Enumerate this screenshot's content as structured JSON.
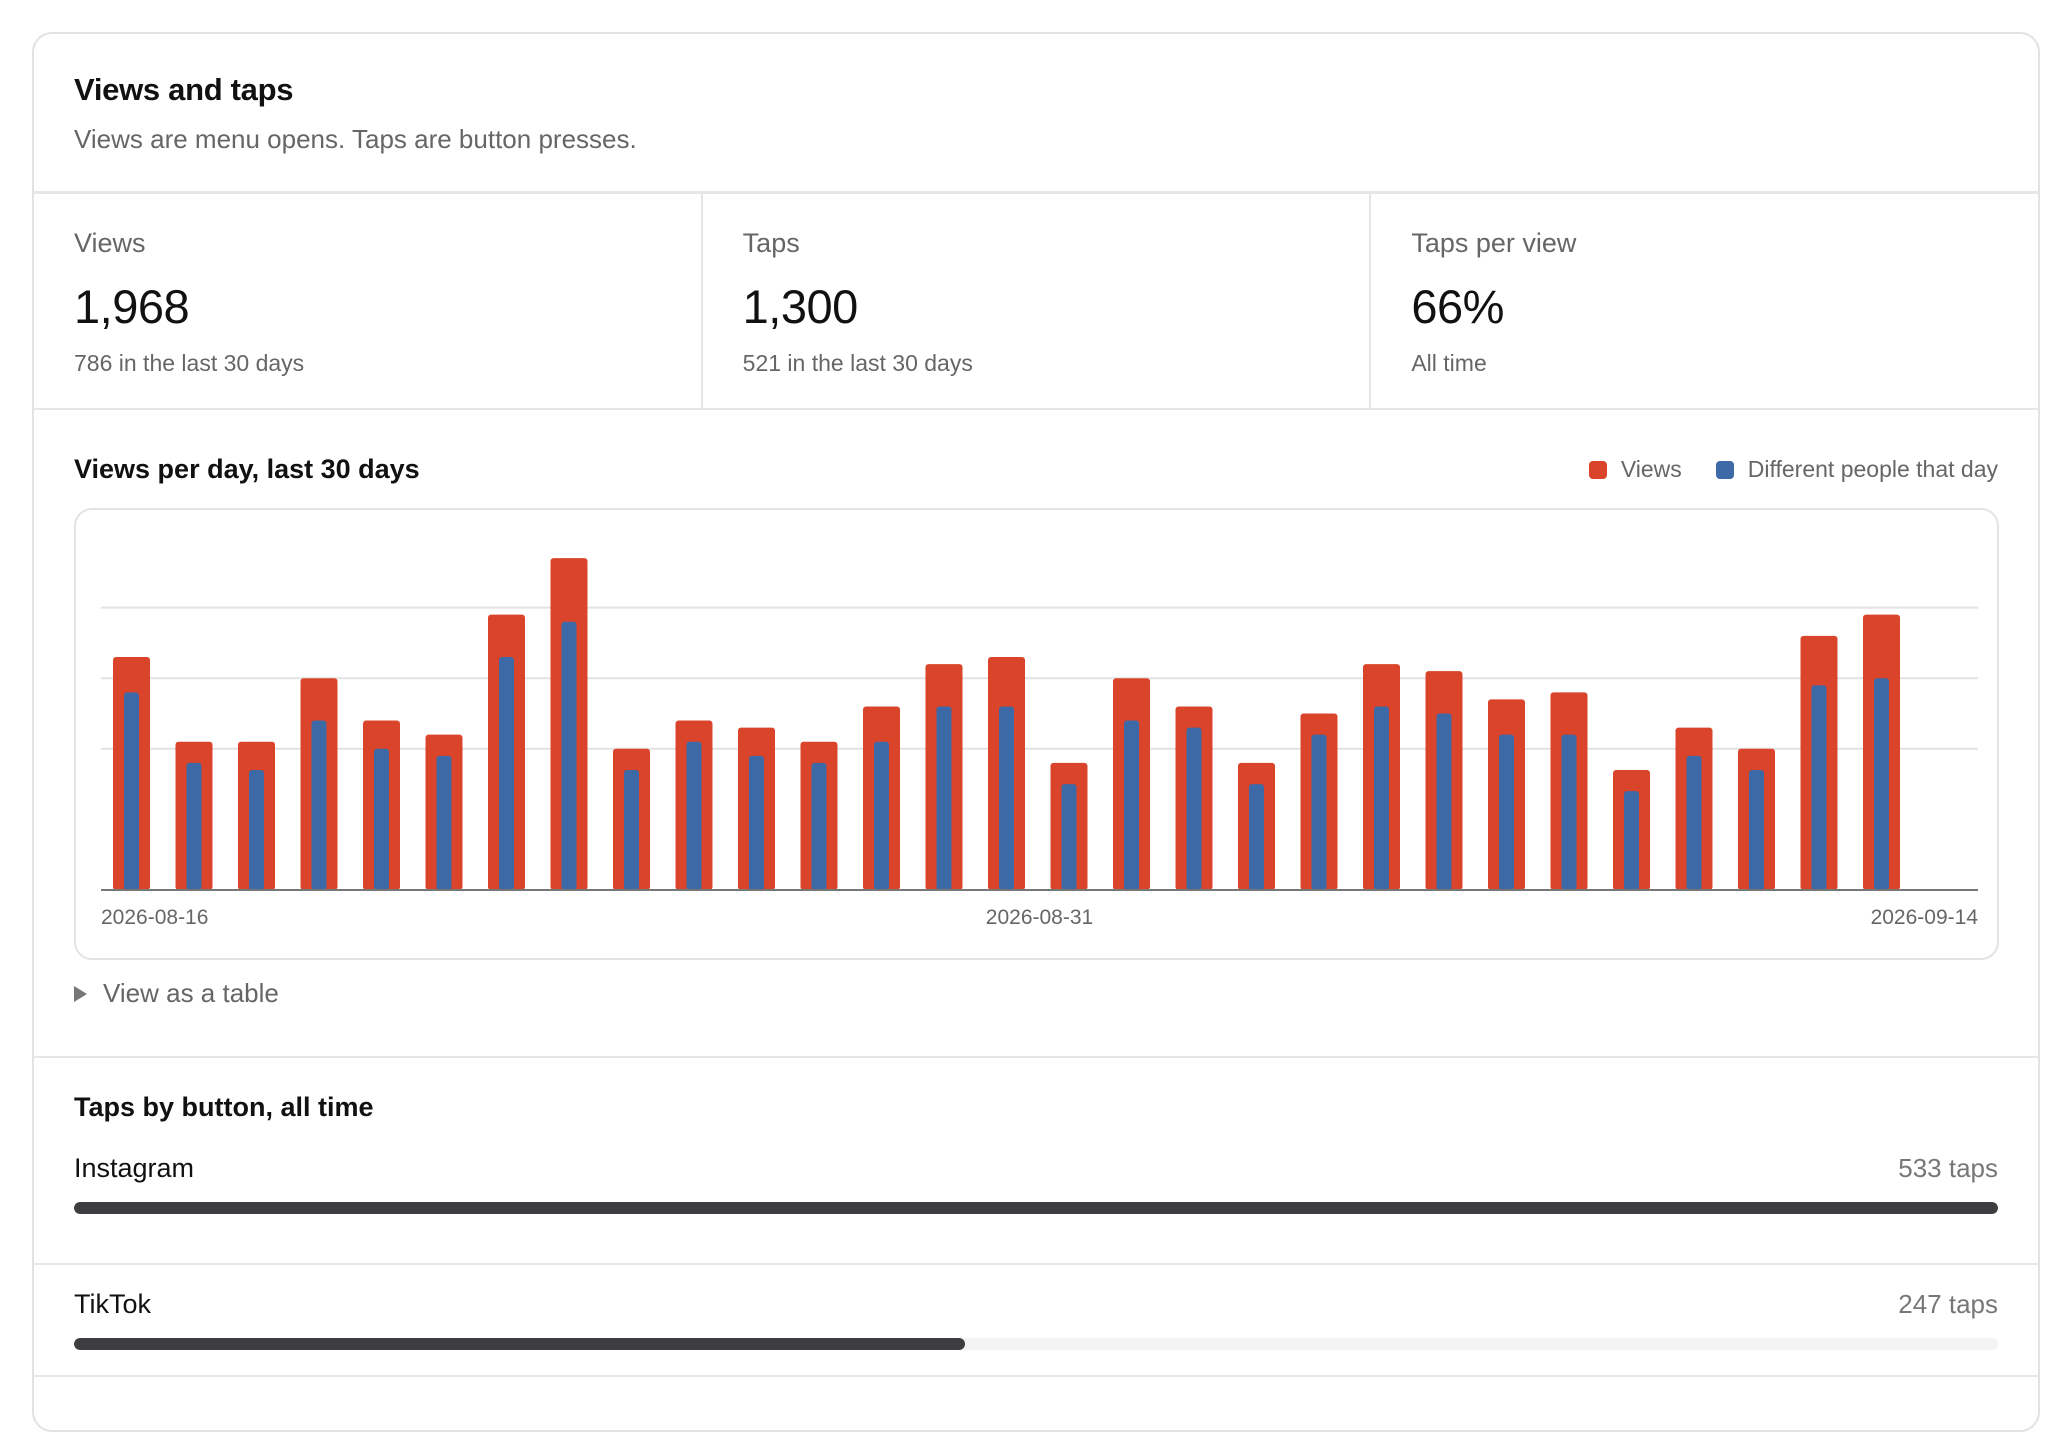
{
  "header": {
    "title": "Views and taps",
    "subtitle": "Views are menu opens. Taps are button presses."
  },
  "stats": [
    {
      "label": "Views",
      "value": "1,968",
      "sub": "786 in the last 30 days"
    },
    {
      "label": "Taps",
      "value": "1,300",
      "sub": "521 in the last 30 days"
    },
    {
      "label": "Taps per view",
      "value": "66%",
      "sub": "All time"
    }
  ],
  "chart": {
    "title": "Views per day, last 30 days",
    "legend": [
      {
        "label": "Views",
        "color": "#d9442a"
      },
      {
        "label": "Different people that day",
        "color": "#3d6aa6"
      }
    ],
    "details_label": "View as a table"
  },
  "chart_data": {
    "type": "bar",
    "x": [
      "2026-08-16",
      "2026-08-17",
      "2026-08-18",
      "2026-08-19",
      "2026-08-20",
      "2026-08-21",
      "2026-08-22",
      "2026-08-23",
      "2026-08-24",
      "2026-08-25",
      "2026-08-26",
      "2026-08-27",
      "2026-08-28",
      "2026-08-29",
      "2026-08-30",
      "2026-08-31",
      "2026-09-01",
      "2026-09-02",
      "2026-09-03",
      "2026-09-04",
      "2026-09-05",
      "2026-09-06",
      "2026-09-07",
      "2026-09-08",
      "2026-09-09",
      "2026-09-10",
      "2026-09-11",
      "2026-09-12",
      "2026-09-13",
      "2026-09-14"
    ],
    "tick_labels": [
      "2026-08-16",
      "2026-08-31",
      "2026-09-14"
    ],
    "series": [
      {
        "name": "Views",
        "color": "#d9442a",
        "values": [
          33,
          21,
          21,
          30,
          24,
          22,
          39,
          47,
          20,
          24,
          23,
          21,
          26,
          32,
          33,
          18,
          30,
          26,
          18,
          25,
          32,
          31,
          27,
          28,
          17,
          23,
          20,
          36,
          39,
          0
        ]
      },
      {
        "name": "Different people that day",
        "color": "#3d6aa6",
        "values": [
          28,
          18,
          17,
          24,
          20,
          19,
          33,
          38,
          17,
          21,
          19,
          18,
          21,
          26,
          26,
          15,
          24,
          23,
          15,
          22,
          26,
          25,
          22,
          22,
          14,
          19,
          17,
          29,
          30,
          0
        ]
      }
    ],
    "ylim": [
      0,
      50
    ],
    "grid": true
  },
  "taps_by_button": {
    "title": "Taps by button, all time",
    "items": [
      {
        "name": "Instagram",
        "count_label": "533 taps",
        "fraction": 1.0
      },
      {
        "name": "TikTok",
        "count_label": "247 taps",
        "fraction": 0.463
      }
    ]
  }
}
